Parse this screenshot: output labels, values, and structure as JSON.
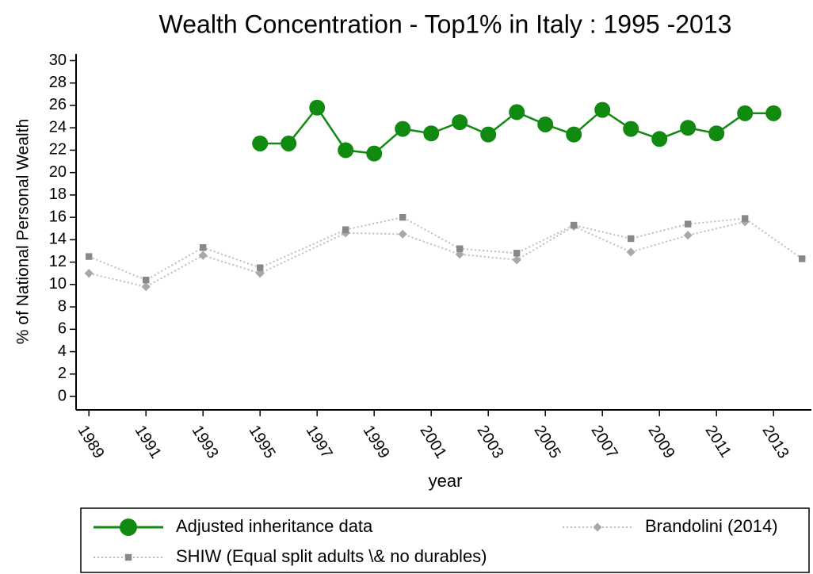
{
  "chart_data": {
    "type": "line",
    "title": "Wealth Concentration - Top1% in Italy : 1995 -2013",
    "x_label": "year",
    "y_label": "% of National Personal Wealth",
    "xlim": [
      1988.55,
      2014.3
    ],
    "ylim": [
      -1.2,
      30.6
    ],
    "xticks": [
      1989,
      1991,
      1993,
      1995,
      1997,
      1999,
      2001,
      2003,
      2005,
      2007,
      2009,
      2011,
      2013
    ],
    "yticks": [
      0,
      2,
      4,
      6,
      8,
      10,
      12,
      14,
      16,
      18,
      20,
      22,
      24,
      26,
      28,
      30
    ],
    "series": [
      {
        "name": "Adjusted inheritance data",
        "color": "#108a10",
        "marker": "circle",
        "line_style": "solid",
        "x": [
          1995,
          1996,
          1997,
          1998,
          1999,
          2000,
          2001,
          2002,
          2003,
          2004,
          2005,
          2006,
          2007,
          2008,
          2009,
          2010,
          2011,
          2012,
          2013
        ],
        "values": [
          22.6,
          22.6,
          25.8,
          22.0,
          21.7,
          23.9,
          23.5,
          24.5,
          23.4,
          25.4,
          24.3,
          23.4,
          25.6,
          23.9,
          23.0,
          24.0,
          23.5,
          25.3,
          25.3
        ]
      },
      {
        "name": "Brandolini (2014)",
        "color": "#a8a8a8",
        "marker": "diamond",
        "line_style": "dotted",
        "x": [
          1989,
          1991,
          1993,
          1995,
          1998,
          2000,
          2002,
          2004,
          2006,
          2008,
          2010,
          2012
        ],
        "values": [
          11.0,
          9.8,
          12.6,
          11.0,
          14.6,
          14.5,
          12.7,
          12.2,
          15.2,
          12.9,
          14.4,
          15.6
        ]
      },
      {
        "name": "SHIW (Equal split adults \\& no durables)",
        "color": "#888888",
        "marker": "square",
        "line_style": "dotted",
        "x": [
          1989,
          1991,
          1993,
          1995,
          1998,
          2000,
          2002,
          2004,
          2006,
          2008,
          2010,
          2012,
          2014
        ],
        "values": [
          12.5,
          10.4,
          13.3,
          11.5,
          14.9,
          16.0,
          13.2,
          12.8,
          15.3,
          14.1,
          15.4,
          15.9,
          12.3
        ]
      }
    ]
  }
}
